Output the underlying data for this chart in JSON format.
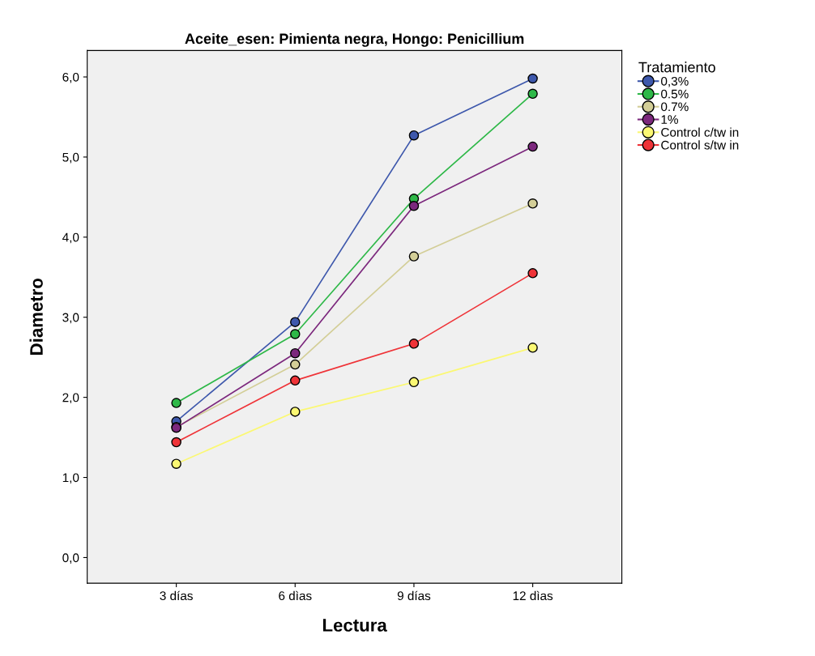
{
  "chart_data": {
    "type": "line",
    "title": "Aceite_esen: Pimienta negra, Hongo: Penicillium",
    "xlabel": "Lectura",
    "ylabel": "Diametro",
    "legend_title": "Tratamiento",
    "categories": [
      "3 días",
      "6 dìas",
      "9 días",
      "12 dìas"
    ],
    "series": [
      {
        "name": "0,3%",
        "color": "#3e58ac",
        "values": [
          1.7,
          2.94,
          5.27,
          5.98
        ]
      },
      {
        "name": "0.5%",
        "color": "#2eb848",
        "values": [
          1.93,
          2.79,
          4.48,
          5.79
        ]
      },
      {
        "name": "0.7%",
        "color": "#d3ce97",
        "values": [
          1.63,
          2.41,
          3.76,
          4.42
        ]
      },
      {
        "name": "1%",
        "color": "#7c287d",
        "values": [
          1.62,
          2.55,
          4.39,
          5.13
        ]
      },
      {
        "name": "Control c/tw in",
        "color": "#fbf873",
        "values": [
          1.17,
          1.82,
          2.19,
          2.62
        ]
      },
      {
        "name": "Control s/tw in",
        "color": "#ef3338",
        "values": [
          1.44,
          2.21,
          2.67,
          3.55
        ]
      }
    ],
    "ylim": [
      -0.32,
      6.33
    ],
    "yticks": [
      {
        "value": 0,
        "label": "0,0"
      },
      {
        "value": 1,
        "label": "1,0"
      },
      {
        "value": 2,
        "label": "2,0"
      },
      {
        "value": 3,
        "label": "3,0"
      },
      {
        "value": 4,
        "label": "4,0"
      },
      {
        "value": 5,
        "label": "5,0"
      },
      {
        "value": 6,
        "label": "6,0"
      }
    ],
    "grid": false,
    "legend": "right",
    "marker": "circle",
    "line_style": "solid"
  }
}
